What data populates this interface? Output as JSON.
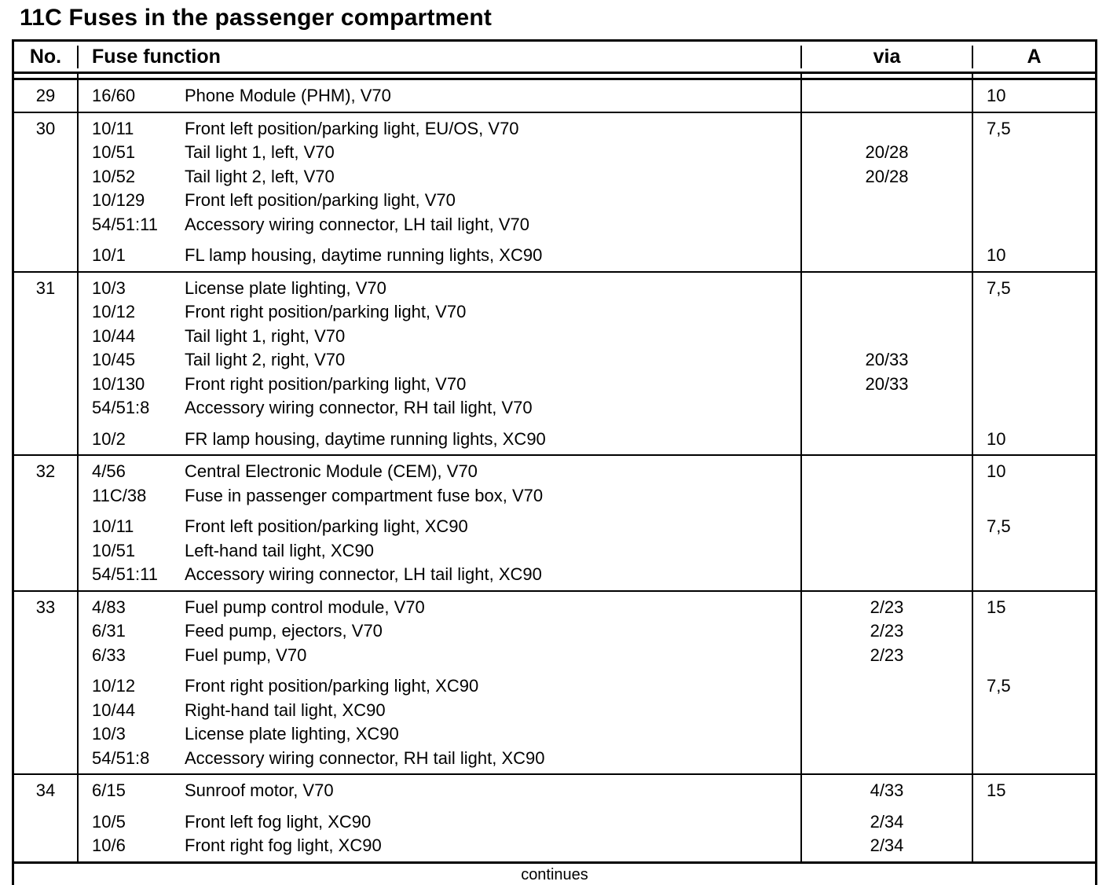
{
  "title": "11C Fuses in the passenger compartment",
  "table": {
    "headers": {
      "no": "No.",
      "fuse_function": "Fuse function",
      "via": "via",
      "amps": "A"
    },
    "rows": [
      {
        "no": "29",
        "groups": [
          [
            {
              "code": "16/60",
              "desc": "Phone Module (PHM), V70",
              "via": "",
              "a": "10"
            }
          ]
        ]
      },
      {
        "no": "30",
        "groups": [
          [
            {
              "code": "10/11",
              "desc": "Front left position/parking light, EU/OS, V70",
              "via": "",
              "a": "7,5"
            },
            {
              "code": "10/51",
              "desc": "Tail light 1, left, V70",
              "via": "20/28",
              "a": ""
            },
            {
              "code": "10/52",
              "desc": "Tail light 2, left, V70",
              "via": "20/28",
              "a": ""
            },
            {
              "code": "10/129",
              "desc": "Front left position/parking light, V70",
              "via": "",
              "a": ""
            },
            {
              "code": "54/51:11",
              "desc": "Accessory wiring connector, LH tail light, V70",
              "via": "",
              "a": ""
            }
          ],
          [
            {
              "code": "10/1",
              "desc": "FL lamp housing, daytime running lights, XC90",
              "via": "",
              "a": "10"
            }
          ]
        ]
      },
      {
        "no": "31",
        "groups": [
          [
            {
              "code": "10/3",
              "desc": "License plate lighting, V70",
              "via": "",
              "a": "7,5"
            },
            {
              "code": "10/12",
              "desc": "Front right position/parking light, V70",
              "via": "",
              "a": ""
            },
            {
              "code": "10/44",
              "desc": "Tail light 1, right, V70",
              "via": "",
              "a": ""
            },
            {
              "code": "10/45",
              "desc": "Tail light 2, right, V70",
              "via": "20/33",
              "a": ""
            },
            {
              "code": "10/130",
              "desc": "Front right position/parking light, V70",
              "via": "20/33",
              "a": ""
            },
            {
              "code": "54/51:8",
              "desc": "Accessory wiring connector, RH tail light, V70",
              "via": "",
              "a": ""
            }
          ],
          [
            {
              "code": "10/2",
              "desc": "FR lamp housing, daytime running lights, XC90",
              "via": "",
              "a": "10"
            }
          ]
        ]
      },
      {
        "no": "32",
        "groups": [
          [
            {
              "code": "4/56",
              "desc": "Central Electronic Module (CEM), V70",
              "via": "",
              "a": "10"
            },
            {
              "code": "11C/38",
              "desc": "Fuse in passenger compartment fuse box, V70",
              "via": "",
              "a": ""
            }
          ],
          [
            {
              "code": "10/11",
              "desc": "Front left position/parking light, XC90",
              "via": "",
              "a": "7,5"
            },
            {
              "code": "10/51",
              "desc": "Left-hand tail light, XC90",
              "via": "",
              "a": ""
            },
            {
              "code": "54/51:11",
              "desc": "Accessory wiring connector, LH tail light, XC90",
              "via": "",
              "a": ""
            }
          ]
        ]
      },
      {
        "no": "33",
        "groups": [
          [
            {
              "code": "4/83",
              "desc": "Fuel pump control module, V70",
              "via": "2/23",
              "a": "15"
            },
            {
              "code": "6/31",
              "desc": "Feed pump, ejectors, V70",
              "via": "2/23",
              "a": ""
            },
            {
              "code": "6/33",
              "desc": "Fuel pump, V70",
              "via": "2/23",
              "a": ""
            }
          ],
          [
            {
              "code": "10/12",
              "desc": "Front right position/parking light, XC90",
              "via": "",
              "a": "7,5"
            },
            {
              "code": "10/44",
              "desc": "Right-hand tail light, XC90",
              "via": "",
              "a": ""
            },
            {
              "code": "10/3",
              "desc": "License plate lighting, XC90",
              "via": "",
              "a": ""
            },
            {
              "code": "54/51:8",
              "desc": "Accessory wiring connector, RH tail light, XC90",
              "via": "",
              "a": ""
            }
          ]
        ]
      },
      {
        "no": "34",
        "groups": [
          [
            {
              "code": "6/15",
              "desc": "Sunroof motor, V70",
              "via": "4/33",
              "a": "15"
            }
          ],
          [
            {
              "code": "10/5",
              "desc": "Front left fog light, XC90",
              "via": "2/34",
              "a": ""
            },
            {
              "code": "10/6",
              "desc": "Front right fog light, XC90",
              "via": "2/34",
              "a": ""
            }
          ]
        ]
      }
    ],
    "footer": "continues"
  }
}
